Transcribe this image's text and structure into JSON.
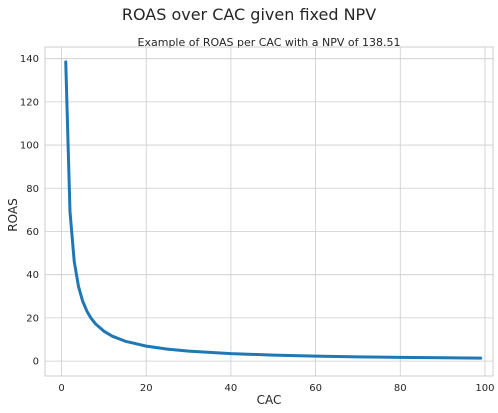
{
  "chart_data": {
    "type": "line",
    "suptitle": "ROAS over CAC given fixed NPV",
    "title": "Example of ROAS per CAC with a NPV of 138.51",
    "xlabel": "CAC",
    "ylabel": "ROAS",
    "xlim": [
      -3.9,
      101.9
    ],
    "ylim": [
      -6.9,
      145.4
    ],
    "xticks": [
      0,
      20,
      40,
      60,
      80,
      100
    ],
    "yticks": [
      0,
      20,
      40,
      60,
      80,
      100,
      120,
      140
    ],
    "grid": true,
    "npv": 138.51,
    "series": [
      {
        "color": "#1f77b4",
        "x": [
          1,
          2,
          3,
          4,
          5,
          6,
          7,
          8,
          10,
          12,
          15,
          20,
          25,
          30,
          40,
          50,
          60,
          70,
          80,
          90,
          99
        ],
        "y": [
          138.51,
          69.26,
          46.17,
          34.63,
          27.7,
          23.09,
          19.79,
          17.31,
          13.85,
          11.54,
          9.23,
          6.93,
          5.54,
          4.62,
          3.46,
          2.77,
          2.31,
          1.98,
          1.73,
          1.54,
          1.4
        ]
      }
    ]
  }
}
